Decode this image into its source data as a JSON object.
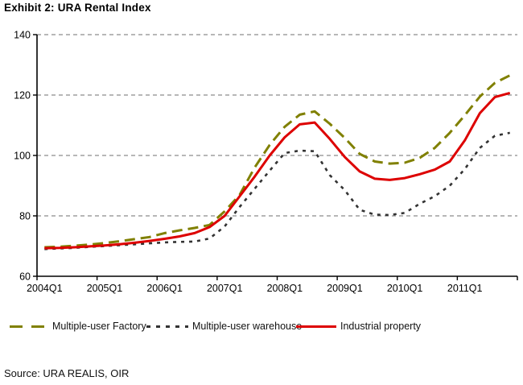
{
  "title": "Exhibit 2: URA Rental Index",
  "source": "Source: URA REALIS, OIR",
  "legend": {
    "items": [
      {
        "label": "Multiple-user Factory",
        "color": "#808000",
        "style": "dashed"
      },
      {
        "label": "Multiple-user warehouse",
        "color": "#333333",
        "style": "dotted"
      },
      {
        "label": "Industrial property",
        "color": "#dd0000",
        "style": "solid"
      }
    ]
  },
  "chart_data": {
    "type": "line",
    "title": "Exhibit 2: URA Rental Index",
    "x_categories": [
      "2004Q1",
      "2004Q2",
      "2004Q3",
      "2004Q4",
      "2005Q1",
      "2005Q2",
      "2005Q3",
      "2005Q4",
      "2006Q1",
      "2006Q2",
      "2006Q3",
      "2006Q4",
      "2007Q1",
      "2007Q2",
      "2007Q3",
      "2007Q4",
      "2008Q1",
      "2008Q2",
      "2008Q3",
      "2008Q4",
      "2009Q1",
      "2009Q2",
      "2009Q3",
      "2009Q4",
      "2010Q1",
      "2010Q2",
      "2010Q3",
      "2010Q4",
      "2011Q1",
      "2011Q2",
      "2011Q3",
      "2011Q4"
    ],
    "x_tick_labels": [
      "2004Q1",
      "2005Q1",
      "2006Q1",
      "2007Q1",
      "2008Q1",
      "2009Q1",
      "2010Q1",
      "2011Q1"
    ],
    "ylim": [
      60,
      140
    ],
    "y_ticks": [
      60,
      80,
      100,
      120,
      140
    ],
    "grid": "horizontal-dashed",
    "legend_position": "bottom",
    "series": [
      {
        "name": "Multiple-user Factory",
        "color": "#808000",
        "line_style": "dashed",
        "values": [
          69.6,
          69.8,
          70.1,
          70.5,
          71.0,
          71.6,
          72.3,
          73.0,
          74.3,
          75.2,
          76.0,
          77.0,
          81.5,
          87.0,
          96.0,
          103.5,
          109.5,
          113.5,
          114.6,
          110.5,
          105.8,
          100.5,
          98.0,
          97.3,
          97.6,
          99.2,
          102.5,
          107.5,
          113.3,
          119.5,
          124.0,
          126.5
        ]
      },
      {
        "name": "Multiple-user warehouse",
        "color": "#333333",
        "line_style": "dotted",
        "values": [
          69.0,
          69.2,
          69.4,
          69.7,
          70.0,
          70.3,
          70.6,
          70.9,
          71.2,
          71.4,
          71.5,
          72.5,
          76.5,
          83.0,
          89.0,
          95.0,
          100.8,
          101.6,
          101.4,
          93.5,
          88.5,
          82.0,
          80.4,
          80.3,
          81.0,
          84.0,
          86.5,
          90.0,
          95.5,
          102.5,
          106.5,
          107.5
        ]
      },
      {
        "name": "Industrial property",
        "color": "#dd0000",
        "line_style": "solid",
        "values": [
          69.3,
          69.4,
          69.6,
          69.9,
          70.2,
          70.6,
          71.1,
          71.7,
          72.4,
          73.2,
          74.3,
          76.3,
          80.0,
          86.5,
          93.0,
          100.0,
          106.0,
          110.3,
          110.9,
          105.5,
          99.5,
          94.7,
          92.3,
          91.9,
          92.5,
          93.8,
          95.3,
          98.0,
          105.0,
          114.0,
          119.3,
          120.7
        ]
      }
    ]
  }
}
